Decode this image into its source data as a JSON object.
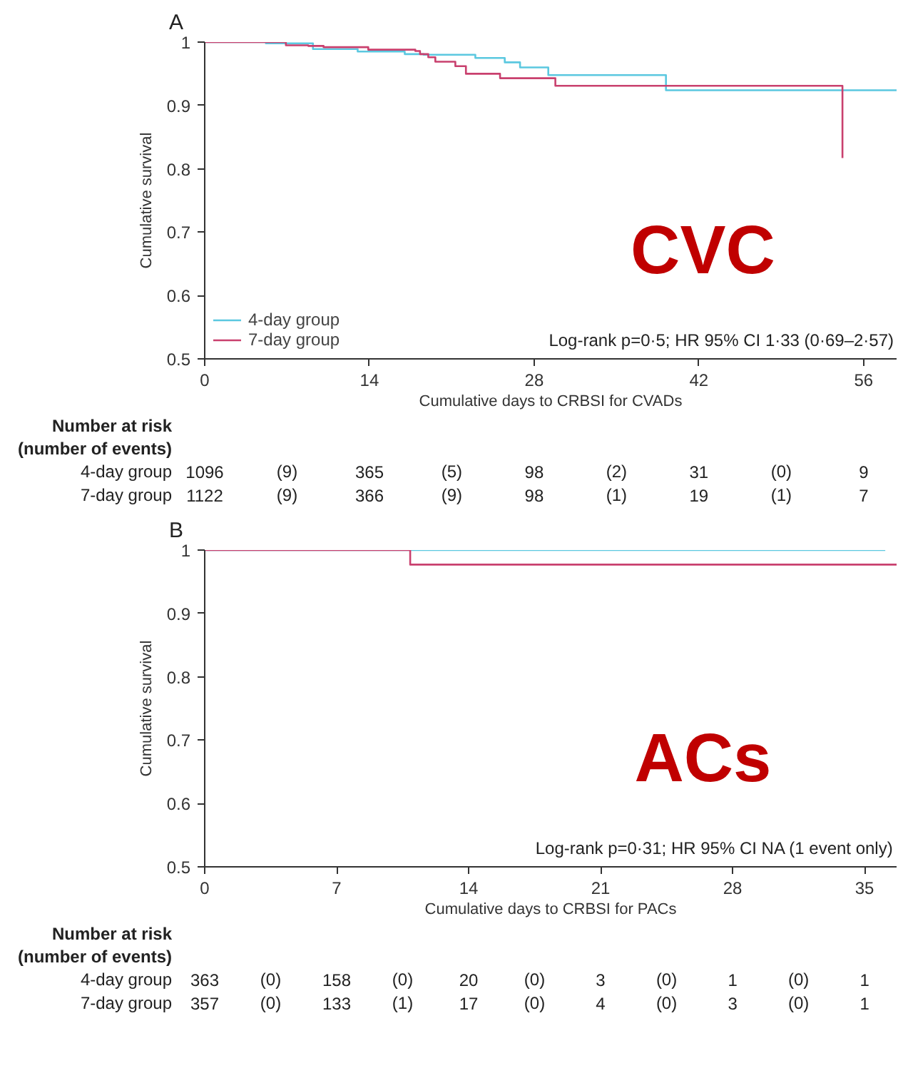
{
  "chart_data": [
    {
      "type": "step",
      "title": "A",
      "xlabel": "Cumulative days to CRBSI for CVADs",
      "ylabel": "Cumulative survival",
      "xlim": [
        0,
        58.8
      ],
      "ylim": [
        0.5,
        1.0
      ],
      "xticks": [
        0,
        14,
        28,
        42,
        56
      ],
      "yticks": [
        0.5,
        0.6,
        0.7,
        0.8,
        0.9,
        1.0
      ],
      "grid": false,
      "legend": "bottom left",
      "series": [
        {
          "name": "4-day group",
          "color": "#5bc8e0",
          "x": [
            0,
            5.2,
            9.2,
            13,
            17,
            18.6,
            23,
            25.5,
            26.8,
            29.2,
            39.2,
            58.8
          ],
          "values": [
            1.0,
            0.998,
            0.989,
            0.985,
            0.981,
            0.98,
            0.975,
            0.968,
            0.96,
            0.948,
            0.924,
            0.924
          ]
        },
        {
          "name": "7-day group",
          "color": "#c9406e",
          "x": [
            0,
            6.9,
            8.8,
            10.1,
            13.9,
            17.9,
            18.3,
            19,
            19.6,
            21.3,
            22.2,
            25.1,
            29.8,
            54.2
          ],
          "values": [
            1.0,
            0.995,
            0.994,
            0.992,
            0.988,
            0.986,
            0.981,
            0.976,
            0.969,
            0.962,
            0.95,
            0.943,
            0.931,
            0.817
          ]
        }
      ],
      "annotations": [
        "Log-rank p=0·5; HR 95% CI 1·33 (0·69–2·57)",
        "CVC",
        "Number at risk",
        "(number of events)",
        "4-day group",
        "1096",
        "(9)",
        "365",
        "(5)",
        "98",
        "(2)",
        "31",
        "(0)",
        "9",
        "7-day group",
        "1122",
        "(9)",
        "366",
        "(9)",
        "98",
        "(1)",
        "19",
        "(1)",
        "7"
      ]
    },
    {
      "type": "step",
      "title": "B",
      "xlabel": "Cumulative days to CRBSI for PACs",
      "ylabel": "Cumulative survival",
      "xlim": [
        0,
        36.7
      ],
      "ylim": [
        0.5,
        1.0
      ],
      "xticks": [
        0,
        7,
        14,
        21,
        28,
        35
      ],
      "yticks": [
        0.5,
        0.6,
        0.7,
        0.8,
        0.9,
        1.0
      ],
      "grid": false,
      "series": [
        {
          "color": "#5bc8e0",
          "x": [
            0,
            36.1
          ],
          "values": [
            1.0,
            1.0
          ]
        },
        {
          "color": "#c9406e",
          "x": [
            0,
            10.9,
            36.7
          ],
          "values": [
            1.0,
            0.977,
            0.977
          ]
        }
      ],
      "annotations": [
        "Log-rank p=0·31; HR 95% CI NA (1 event only)",
        "ACs",
        "Number at risk",
        "(number of events)",
        "4-day group",
        "363",
        "(0)",
        "158",
        "(0)",
        "20",
        "(0)",
        "3",
        "(0)",
        "1",
        "(0)",
        "1",
        "7-day group",
        "357",
        "(0)",
        "133",
        "(1)",
        "17",
        "(0)",
        "4",
        "(0)",
        "3",
        "(0)",
        "1"
      ]
    }
  ]
}
